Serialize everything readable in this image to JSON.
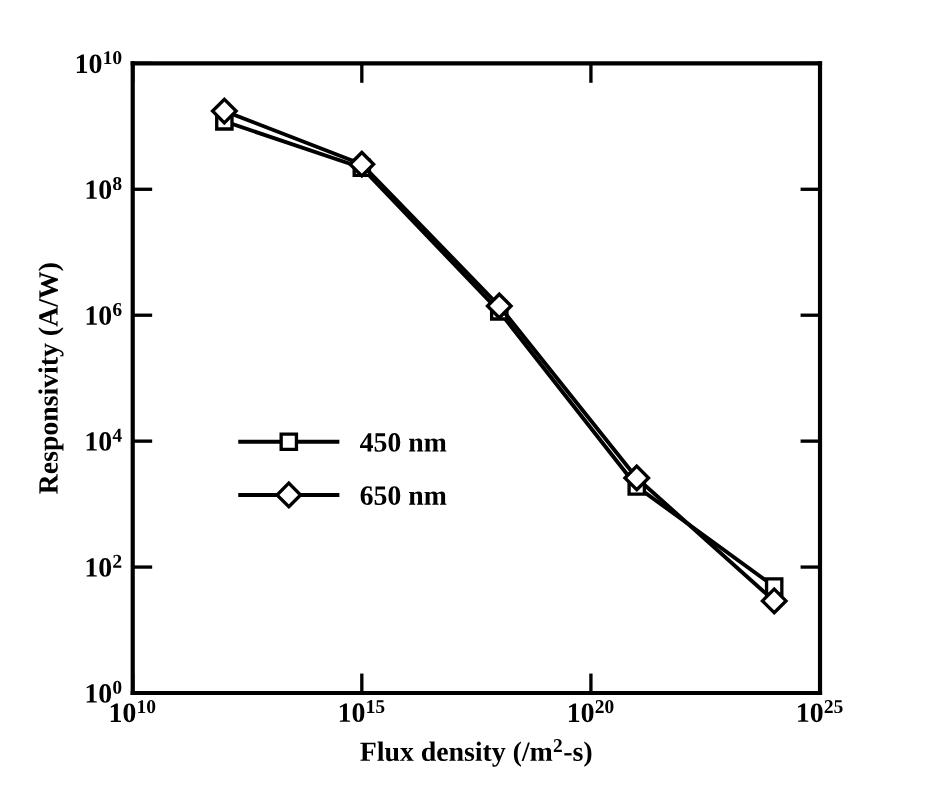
{
  "chart_data": {
    "type": "line",
    "xlabel": "Flux density (/m$^{2}$-s)",
    "ylabel": "Responsivity (A/W)",
    "log": "xy",
    "x": [
      1000000000000.0,
      1000000000000000.0,
      1e+18,
      1e+21,
      1e+24
    ],
    "series": [
      {
        "name": "450 nm",
        "color": "#000000",
        "marker": "square",
        "values": [
          1200000000.0,
          220000000.0,
          1150000.0,
          1900.0,
          49
        ]
      },
      {
        "name": "650 nm",
        "color": "#000000",
        "marker": "diamond",
        "values": [
          1750000000.0,
          250000000.0,
          1400000.0,
          2600.0,
          29
        ]
      }
    ],
    "xlim": [
      10000000000.0,
      1e+25
    ],
    "ylim": [
      1,
      10000000000.0
    ],
    "xticks": [
      {
        "value": 10000000000.0,
        "label": "10$^{10}$"
      },
      {
        "value": 1000000000000000.0,
        "label": "10$^{15}$"
      },
      {
        "value": 1e+20,
        "label": "10$^{20}$"
      },
      {
        "value": 1e+25,
        "label": "10$^{25}$"
      }
    ],
    "yticks": [
      {
        "value": 1,
        "label": "10$^{0}$"
      },
      {
        "value": 100,
        "label": "10$^{2}$"
      },
      {
        "value": 10000.0,
        "label": "10$^{4}$"
      },
      {
        "value": 1000000.0,
        "label": "10$^{6}$"
      },
      {
        "value": 100000000.0,
        "label": "10$^{8}$"
      },
      {
        "value": 10000000000.0,
        "label": "10$^{10}$"
      }
    ],
    "grid": false,
    "legend": "lower left",
    "line_style": "solid"
  }
}
